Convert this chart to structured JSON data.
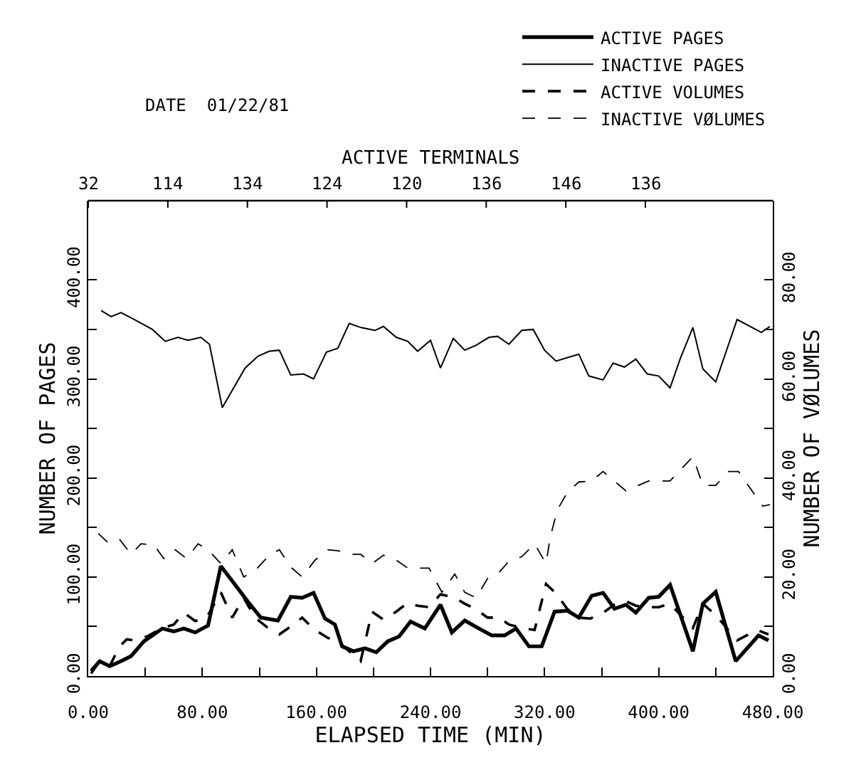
{
  "chart_data": {
    "type": "line",
    "xlabel": "ELAPSED TIME (MIN)",
    "ylabel": "NUMBER OF PAGES",
    "y2label": "NUMBER OF VØLUMES",
    "annotations": [
      "DATE  01/22/81",
      "ACTIVE TERMINALS",
      "32",
      "114",
      "134",
      "124",
      "120",
      "136",
      "146",
      "136"
    ],
    "xlim": [
      0,
      480
    ],
    "xticks": [
      {
        "value": 0,
        "label": "0.00"
      },
      {
        "value": 40,
        "label": null
      },
      {
        "value": 80,
        "label": "80.00"
      },
      {
        "value": 120,
        "label": null
      },
      {
        "value": 160,
        "label": "160.00"
      },
      {
        "value": 200,
        "label": null
      },
      {
        "value": 240,
        "label": "240.00"
      },
      {
        "value": 280,
        "label": null
      },
      {
        "value": 320,
        "label": "320.00"
      },
      {
        "value": 360,
        "label": null
      },
      {
        "value": 400,
        "label": "400.00"
      },
      {
        "value": 440,
        "label": null
      },
      {
        "value": 480,
        "label": "480.00"
      }
    ],
    "ylim": [
      0,
      480
    ],
    "yticks": [
      {
        "value": 0,
        "label": "0.00"
      },
      {
        "value": 50,
        "label": null
      },
      {
        "value": 100,
        "label": "100.00"
      },
      {
        "value": 150,
        "label": null
      },
      {
        "value": 200,
        "label": "200.00"
      },
      {
        "value": 250,
        "label": null
      },
      {
        "value": 300,
        "label": "300.00"
      },
      {
        "value": 350,
        "label": null
      },
      {
        "value": 400,
        "label": "400.00"
      }
    ],
    "y2lim": [
      0,
      96
    ],
    "y2ticks": [
      {
        "value": 0,
        "label": "0.00"
      },
      {
        "value": 10,
        "label": null
      },
      {
        "value": 20,
        "label": "20.00"
      },
      {
        "value": 30,
        "label": null
      },
      {
        "value": 40,
        "label": "40.00"
      },
      {
        "value": 50,
        "label": null
      },
      {
        "value": 60,
        "label": "60.00"
      },
      {
        "value": 70,
        "label": null
      },
      {
        "value": 80,
        "label": "80.00"
      }
    ],
    "grid": false,
    "legend": "top right",
    "marker": "none",
    "series": [
      {
        "name": "ACTIVE PAGES",
        "color": "#000000",
        "line_style": "solid",
        "x": [
          2,
          8,
          15,
          23,
          30,
          39,
          52,
          60,
          67,
          75,
          84,
          93,
          102,
          112,
          121,
          133,
          142,
          150,
          158,
          166,
          173,
          178,
          186,
          194,
          202,
          210,
          218,
          226,
          236,
          247,
          255,
          264,
          274,
          283,
          292,
          300,
          309,
          318,
          327,
          336,
          344,
          353,
          361,
          369,
          377,
          384,
          393,
          400,
          408,
          424,
          431,
          440,
          454,
          470,
          477
        ],
        "values": [
          5,
          15,
          10,
          15,
          20,
          35,
          48,
          45,
          48,
          44,
          51,
          111,
          94,
          75,
          59,
          56,
          80,
          79,
          84,
          58,
          52,
          30,
          25,
          28,
          24,
          35,
          40,
          55,
          48,
          72,
          44,
          56,
          48,
          41,
          41,
          48,
          30,
          30,
          65,
          66,
          59,
          81,
          84,
          68,
          72,
          64,
          79,
          80,
          92,
          25,
          73,
          85,
          15,
          41,
          36
        ]
      },
      {
        "name": "INACTIVE PAGES",
        "color": "#000000",
        "line_style": "solid",
        "x": [
          9,
          16,
          23,
          31,
          45,
          54,
          63,
          70,
          79,
          85,
          94,
          110,
          119,
          127,
          134,
          142,
          151,
          158,
          167,
          175,
          183,
          191,
          201,
          207,
          216,
          224,
          231,
          240,
          247,
          256,
          264,
          272,
          281,
          287,
          295,
          304,
          312,
          320,
          328,
          344,
          351,
          361,
          368,
          376,
          384,
          392,
          400,
          408,
          415,
          424,
          431,
          440,
          455,
          472,
          478
        ],
        "values": [
          369,
          363,
          367,
          361,
          350,
          338,
          342,
          339,
          342,
          335,
          271,
          311,
          323,
          328,
          329,
          304,
          305,
          300,
          327,
          331,
          356,
          352,
          349,
          353,
          342,
          338,
          328,
          339,
          311,
          341,
          329,
          334,
          342,
          343,
          335,
          349,
          350,
          329,
          318,
          325,
          303,
          299,
          316,
          312,
          320,
          305,
          303,
          291,
          320,
          352,
          310,
          297,
          360,
          347,
          353
        ]
      },
      {
        "name": "ACTIVE VOLUMES",
        "color": "#000000",
        "line_style": "dashed",
        "axis": "y2",
        "x": [
          2,
          8,
          15,
          22,
          27,
          33,
          42,
          52,
          60,
          67,
          75,
          83,
          93,
          101,
          109,
          117,
          126,
          134,
          142,
          150,
          158,
          168,
          175,
          183,
          191,
          199,
          207,
          216,
          224,
          231,
          239,
          247,
          257,
          264,
          272,
          280,
          288,
          295,
          304,
          313,
          321,
          328,
          336,
          344,
          352,
          361,
          369,
          377,
          384,
          393,
          400,
          408,
          424,
          431,
          440,
          455,
          469,
          477
        ],
        "values": [
          0.5,
          3,
          2,
          6,
          7.4,
          7.2,
          8.1,
          9.7,
          10.4,
          12.8,
          11.1,
          11.8,
          16.9,
          11.8,
          15.8,
          11.8,
          9.7,
          8.4,
          10,
          11.8,
          9.5,
          7.7,
          7,
          5,
          3,
          13,
          11.4,
          13,
          14.8,
          14.2,
          13.9,
          16.5,
          15.8,
          14.6,
          13.5,
          11.8,
          11.8,
          10.4,
          9.7,
          9.3,
          18.6,
          16.7,
          13.5,
          11.8,
          11.6,
          12.8,
          14.4,
          15.1,
          14.2,
          13.9,
          13.9,
          14.6,
          9.7,
          14.6,
          12.3,
          7.2,
          9.3,
          8.4
        ]
      },
      {
        "name": "INACTIVE VØLUMES",
        "color": "#000000",
        "line_style": "dashed",
        "axis": "y2",
        "x": [
          7,
          14,
          22,
          30,
          37,
          46,
          53,
          61,
          69,
          77,
          84,
          93,
          101,
          109,
          117,
          127,
          134,
          142,
          150,
          159,
          168,
          175,
          183,
          191,
          199,
          207,
          216,
          223,
          231,
          239,
          248,
          257,
          264,
          272,
          280,
          288,
          295,
          304,
          313,
          321,
          324,
          329,
          336,
          344,
          353,
          361,
          377,
          393,
          408,
          424,
          431,
          440,
          449,
          456,
          473,
          478
        ],
        "values": [
          28.8,
          26.9,
          27.6,
          24.6,
          26.7,
          26.5,
          23.7,
          25.5,
          23.7,
          26.7,
          25.5,
          22.7,
          25.5,
          20,
          21.3,
          24.4,
          25.5,
          22,
          20,
          23.4,
          25.5,
          25.3,
          24.6,
          24.6,
          22.7,
          24.4,
          23.4,
          22,
          21.8,
          21.8,
          16.9,
          20.6,
          16.9,
          15.8,
          19.7,
          20.9,
          23.2,
          24.1,
          26.7,
          22.7,
          28.1,
          33.6,
          37.1,
          39.2,
          39.4,
          41.3,
          37.4,
          39.4,
          39.4,
          44.3,
          38.5,
          38.5,
          41.3,
          41.3,
          34.3,
          34.6
        ]
      }
    ]
  }
}
